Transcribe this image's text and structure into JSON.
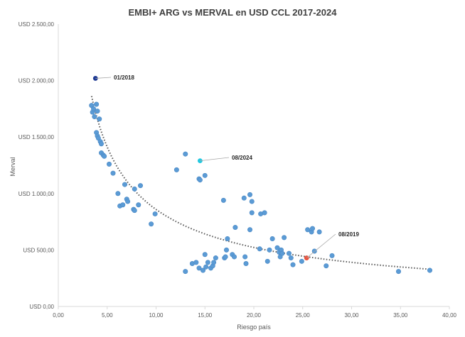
{
  "chart_data": {
    "type": "scatter",
    "title": "EMBI+ ARG vs MERVAL en USD CCL 2017-2024",
    "xlabel": "Riesgo país",
    "ylabel": "Merval",
    "xlim": [
      0,
      40
    ],
    "ylim": [
      0,
      2500
    ],
    "xticks": [
      0,
      5,
      10,
      15,
      20,
      25,
      30,
      35,
      40
    ],
    "xtick_labels": [
      "0,00",
      "5,00",
      "10,00",
      "15,00",
      "20,00",
      "25,00",
      "30,00",
      "35,00",
      "40,00"
    ],
    "yticks": [
      0,
      500,
      1000,
      1500,
      2000,
      2500
    ],
    "ytick_labels": [
      "USD 0,00",
      "USD 500,00",
      "USD 1.000,00",
      "USD 1.500,00",
      "USD 2.000,00",
      "USD 2.500,00"
    ],
    "grid": false,
    "legend": "none",
    "colors": {
      "points": "#5b9bd5",
      "highlight_2018": "#1f3a93",
      "highlight_2024": "#22c8e0",
      "highlight_2019": "#e8533f",
      "trendline": "#595959",
      "axis": "#d9d9d9"
    },
    "points": [
      [
        3.4,
        1780
      ],
      [
        3.5,
        1720
      ],
      [
        3.6,
        1750
      ],
      [
        3.7,
        1680
      ],
      [
        3.9,
        1790
      ],
      [
        4.0,
        1730
      ],
      [
        3.9,
        1540
      ],
      [
        4.0,
        1510
      ],
      [
        4.1,
        1490
      ],
      [
        4.2,
        1660
      ],
      [
        4.3,
        1460
      ],
      [
        4.4,
        1440
      ],
      [
        4.4,
        1360
      ],
      [
        4.6,
        1340
      ],
      [
        4.7,
        1330
      ],
      [
        5.2,
        1260
      ],
      [
        5.6,
        1180
      ],
      [
        6.1,
        1000
      ],
      [
        6.3,
        890
      ],
      [
        6.6,
        900
      ],
      [
        6.8,
        1080
      ],
      [
        7.0,
        950
      ],
      [
        7.1,
        930
      ],
      [
        7.7,
        860
      ],
      [
        7.8,
        850
      ],
      [
        7.8,
        1040
      ],
      [
        8.2,
        900
      ],
      [
        8.4,
        1070
      ],
      [
        9.5,
        730
      ],
      [
        9.9,
        820
      ],
      [
        12.1,
        1210
      ],
      [
        13.0,
        1350
      ],
      [
        14.4,
        1130
      ],
      [
        14.5,
        1120
      ],
      [
        15.0,
        1160
      ],
      [
        13.0,
        310
      ],
      [
        13.7,
        380
      ],
      [
        14.1,
        390
      ],
      [
        14.4,
        340
      ],
      [
        14.8,
        320
      ],
      [
        15.0,
        460
      ],
      [
        15.1,
        350
      ],
      [
        15.3,
        390
      ],
      [
        15.6,
        340
      ],
      [
        15.8,
        360
      ],
      [
        15.9,
        390
      ],
      [
        16.1,
        430
      ],
      [
        16.9,
        940
      ],
      [
        17.0,
        430
      ],
      [
        17.1,
        440
      ],
      [
        17.2,
        500
      ],
      [
        17.3,
        600
      ],
      [
        17.8,
        460
      ],
      [
        18.0,
        440
      ],
      [
        18.1,
        700
      ],
      [
        19.0,
        960
      ],
      [
        19.1,
        440
      ],
      [
        19.2,
        380
      ],
      [
        19.6,
        990
      ],
      [
        19.6,
        680
      ],
      [
        19.8,
        930
      ],
      [
        19.8,
        830
      ],
      [
        20.6,
        510
      ],
      [
        20.7,
        820
      ],
      [
        21.1,
        830
      ],
      [
        21.4,
        400
      ],
      [
        21.6,
        500
      ],
      [
        21.9,
        600
      ],
      [
        22.4,
        520
      ],
      [
        22.6,
        480
      ],
      [
        22.7,
        440
      ],
      [
        22.8,
        500
      ],
      [
        22.9,
        470
      ],
      [
        23.1,
        610
      ],
      [
        23.6,
        470
      ],
      [
        23.8,
        430
      ],
      [
        24.0,
        370
      ],
      [
        24.9,
        400
      ],
      [
        25.5,
        680
      ],
      [
        25.9,
        660
      ],
      [
        26.0,
        690
      ],
      [
        26.2,
        490
      ],
      [
        26.7,
        660
      ],
      [
        27.4,
        360
      ],
      [
        28.0,
        450
      ],
      [
        34.8,
        310
      ],
      [
        38.0,
        320
      ]
    ],
    "highlights": [
      {
        "label": "01/2018",
        "x": 3.8,
        "y": 2020,
        "color": "#1f3a93"
      },
      {
        "label": "08/2024",
        "x": 14.5,
        "y": 1290,
        "color": "#22c8e0"
      },
      {
        "label": "08/2019",
        "x": 25.4,
        "y": 430,
        "color": "#e8533f"
      }
    ],
    "trendline": {
      "type": "power",
      "a": 4478,
      "b": -0.7169,
      "x_from": 3.4,
      "x_to": 38.0
    }
  }
}
